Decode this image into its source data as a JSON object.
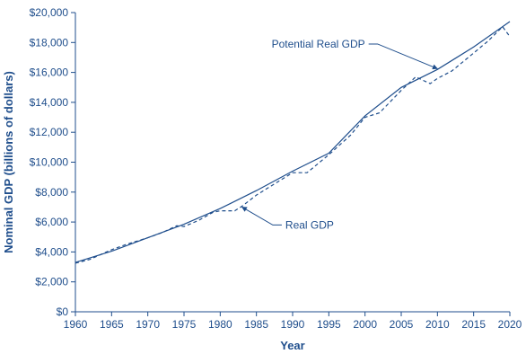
{
  "chart_data": {
    "type": "line",
    "title": "",
    "xlabel": "Year",
    "ylabel": "Nominal GDP (billions of dollars)",
    "xlim": [
      1960,
      2020
    ],
    "ylim": [
      0,
      20000
    ],
    "x_ticks": [
      1960,
      1965,
      1970,
      1975,
      1980,
      1985,
      1990,
      1995,
      2000,
      2005,
      2010,
      2015,
      2020
    ],
    "y_ticks": [
      0,
      2000,
      4000,
      6000,
      8000,
      10000,
      12000,
      14000,
      16000,
      18000,
      20000
    ],
    "y_tick_labels": [
      "$0",
      "$2,000",
      "$4,000",
      "$6,000",
      "$8,000",
      "$10,000",
      "$12,000",
      "$14,000",
      "$16,000",
      "$18,000",
      "$20,000"
    ],
    "grid": false,
    "series": [
      {
        "name": "Potential Real GDP",
        "style": "solid",
        "color": "#1f4e8c",
        "x": [
          1960,
          1965,
          1970,
          1975,
          1980,
          1985,
          1990,
          1995,
          2000,
          2005,
          2010,
          2015,
          2020
        ],
        "y": [
          3300,
          4050,
          4950,
          5850,
          6900,
          8100,
          9400,
          10600,
          13100,
          15000,
          16200,
          17700,
          19400
        ]
      },
      {
        "name": "Real GDP",
        "style": "dashed",
        "color": "#1f4e8c",
        "x": [
          1960,
          1962,
          1965,
          1967,
          1970,
          1972,
          1974,
          1975,
          1977,
          1979,
          1980,
          1982,
          1983,
          1985,
          1988,
          1990,
          1992,
          1995,
          1998,
          2000,
          2002,
          2005,
          2007,
          2009,
          2010,
          2012,
          2015,
          2017,
          2019,
          2020
        ],
        "y": [
          3250,
          3500,
          4150,
          4500,
          4950,
          5300,
          5750,
          5700,
          6100,
          6650,
          6750,
          6750,
          7050,
          7800,
          8700,
          9300,
          9300,
          10500,
          11800,
          13000,
          13300,
          14800,
          15700,
          15250,
          15600,
          16100,
          17300,
          18100,
          19050,
          18400
        ]
      }
    ],
    "annotations": [
      {
        "text": "Potential Real GDP",
        "x": 2000,
        "y": 17900,
        "arrow_to": [
          2010,
          16250
        ]
      },
      {
        "text": "Real GDP",
        "x": 1989,
        "y": 5800,
        "arrow_to": [
          1983,
          7000
        ]
      }
    ]
  }
}
